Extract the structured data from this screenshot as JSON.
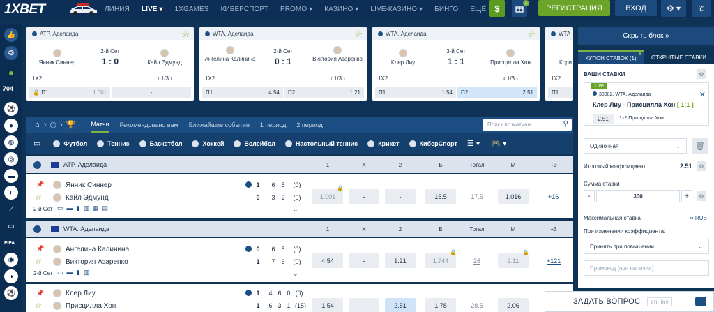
{
  "brand": {
    "logo": "1XBET"
  },
  "nav": [
    {
      "label": "ЛИНИЯ",
      "active": false
    },
    {
      "label": "LIVE",
      "active": true
    },
    {
      "label": "1XGAMES",
      "active": false
    },
    {
      "label": "КИБЕРСПОРТ",
      "active": false
    },
    {
      "label": "PROMO",
      "active": false
    },
    {
      "label": "КАЗИНО",
      "active": false
    },
    {
      "label": "LIVE-КАЗИНО",
      "active": false
    },
    {
      "label": "БИНГО",
      "active": false
    },
    {
      "label": "ЕЩЁ",
      "active": false
    }
  ],
  "topbar": {
    "register_label": "РЕГИСТРАЦИЯ",
    "login_label": "ВХОД",
    "gift_badge": "1"
  },
  "sidebar": {
    "count": "704",
    "fifa": "FIFA"
  },
  "cards": [
    {
      "league": "ATP. Аделаида",
      "p1": "Янник Синнер",
      "p2": "Кайл Эдмунд",
      "set": "2-й Сет",
      "score": "1 : 0",
      "market": "1X2",
      "pager": "1/3",
      "o1_label": "П1",
      "o1_value": "1.001",
      "o2_label": "",
      "o2_value": "-",
      "locked": true
    },
    {
      "league": "WTA. Аделаида",
      "p1": "Ангелина Калинина",
      "p2": "Виктория Азаренко",
      "set": "2-й Сет",
      "score": "0 : 1",
      "market": "1X2",
      "pager": "1/3",
      "o1_label": "П1",
      "o1_value": "4.54",
      "o2_label": "П2",
      "o2_value": "1.21",
      "locked": false
    },
    {
      "league": "WTA. Аделаида",
      "p1": "Клер Лиу",
      "p2": "Присцилла Хон",
      "set": "3-й Сет",
      "score": "1 : 1",
      "market": "1X2",
      "pager": "1/3",
      "o1_label": "П1",
      "o1_value": "1.54",
      "o2_label": "П2",
      "o2_value": "2.51",
      "locked": false
    },
    {
      "league": "WTA",
      "p1": "Кори",
      "market": "1X2",
      "o1_label": "П1"
    }
  ],
  "hide_block": "Скрыть блок »",
  "coupon_tabs": {
    "coupon": "КУПОН СТАВОК (1)",
    "open": "ОТКРЫТЫЕ СТАВКИ"
  },
  "main_tabs": [
    "Матчи",
    "Рекомендовано вам",
    "Ближайшие события",
    "1 период",
    "2 период"
  ],
  "search_placeholder": "Поиск по матчам",
  "sports": [
    "Футбол",
    "Теннис",
    "Баскетбол",
    "Хоккей",
    "Волейбол",
    "Настольный теннис",
    "Крикет",
    "КиберСпорт"
  ],
  "columns": {
    "c1": "1",
    "cx": "X",
    "c2": "2",
    "b": "Б",
    "total": "Тотал",
    "m": "М",
    "more": "+3"
  },
  "leagues": [
    {
      "name": "ATP. Аделаида"
    },
    {
      "name": "WTA. Аделаида"
    }
  ],
  "matches": [
    {
      "p1": "Янник Синнер",
      "p2": "Кайл Эдмунд",
      "s1": [
        "1",
        "6",
        "5",
        "(0)"
      ],
      "s2": [
        "0",
        "3",
        "2",
        "(0)"
      ],
      "set": "2-й Сет",
      "odds": [
        "1.001",
        "-",
        "-",
        "15.5",
        "17.5",
        "1.016"
      ],
      "more": "+16"
    },
    {
      "p1": "Ангелина Калинина",
      "p2": "Виктория Азаренко",
      "s1": [
        "0",
        "6",
        "5",
        "(0)"
      ],
      "s2": [
        "1",
        "7",
        "6",
        "(0)"
      ],
      "set": "2-й Сет",
      "odds": [
        "4.54",
        "-",
        "1.21",
        "1.744",
        "26",
        "2.11"
      ],
      "more": "+121"
    },
    {
      "p1": "Клер Лиу",
      "p2": "Присцилла Хон",
      "s1": [
        "1",
        "4",
        "6",
        "0",
        "(0)"
      ],
      "s2": [
        "1",
        "6",
        "3",
        "1",
        "(15)"
      ],
      "odds": [
        "1.54",
        "-",
        "2.51",
        "1.78",
        "28.5",
        "2.06"
      ]
    }
  ],
  "coupon": {
    "your_bets": "ВАШИ СТАВКИ",
    "live": "Live",
    "event_id": "30002. WTA. Аделаида",
    "event": "Клер Лиу - Присцилла Хон",
    "event_score": "[ 1:1 ]",
    "odd": "2.51",
    "bet_type": "1x2 Присцилла Хон",
    "mode": "Одиночная",
    "total_label": "Итоговый коэффициент",
    "total_value": "2.51",
    "stake_label": "Сумма ставки",
    "stake_value": "300",
    "max_label": "Максимальная ставка",
    "max_value": "∞ RUB",
    "change_label": "При изменении коэффициента:",
    "change_value": "Принять при повышении",
    "promo_placeholder": "Промокод (при наличии)"
  },
  "ask": {
    "label": "ЗАДАТЬ ВОПРОС",
    "status": "on-line"
  }
}
